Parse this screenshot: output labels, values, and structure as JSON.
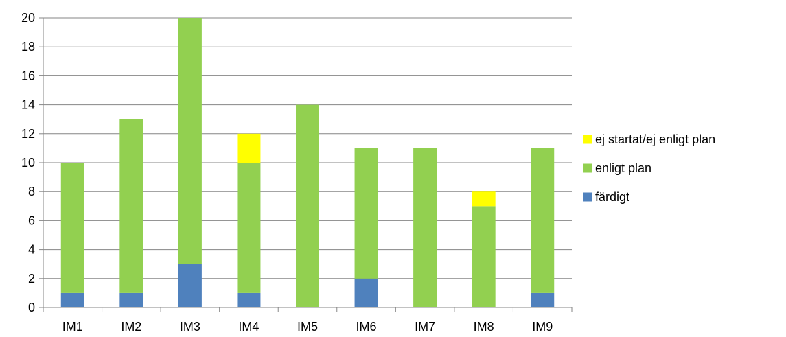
{
  "chart_data": {
    "type": "bar",
    "stacked": true,
    "title": "",
    "xlabel": "",
    "ylabel": "",
    "categories": [
      "IM1",
      "IM2",
      "IM3",
      "IM4",
      "IM5",
      "IM6",
      "IM7",
      "IM8",
      "IM9"
    ],
    "series": [
      {
        "name": "färdigt",
        "color": "#4F81BD",
        "values": [
          1,
          1,
          3,
          1,
          0,
          2,
          0,
          0,
          1
        ]
      },
      {
        "name": "enligt plan",
        "color": "#92D050",
        "values": [
          9,
          12,
          17,
          9,
          14,
          9,
          11,
          7,
          10
        ]
      },
      {
        "name": "ej startat/ej enligt plan",
        "color": "#FFFF00",
        "values": [
          0,
          0,
          0,
          2,
          0,
          0,
          0,
          1,
          0
        ]
      }
    ],
    "ylim": [
      0,
      20
    ],
    "yticks": [
      0,
      2,
      4,
      6,
      8,
      10,
      12,
      14,
      16,
      18,
      20
    ],
    "grid": true,
    "legend": {
      "position": "right",
      "order": [
        "ej startat/ej enligt plan",
        "enligt plan",
        "färdigt"
      ]
    }
  }
}
